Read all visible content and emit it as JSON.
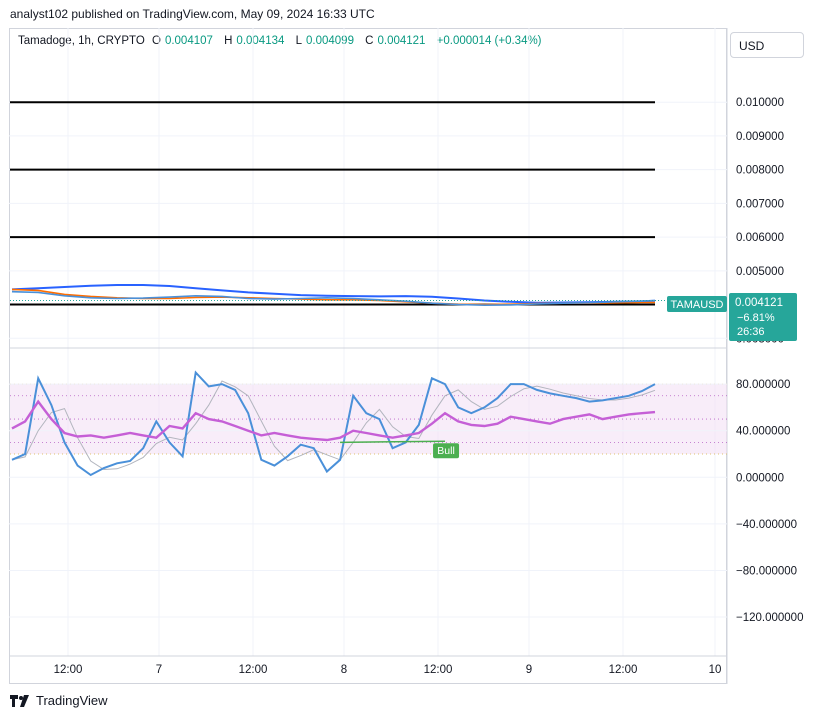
{
  "header": {
    "published": "analyst102 published on TradingView.com, May 09, 2024 16:33 UTC"
  },
  "legend": {
    "symbol": "Tamadoge, 1h, CRYPTO",
    "o_key": "O",
    "o": "0.004107",
    "h_key": "H",
    "h": "0.004134",
    "l_key": "L",
    "l": "0.004099",
    "c_key": "C",
    "c": "0.004121",
    "change": "+0.000014 (+0.34%)"
  },
  "currency_button": "USD",
  "price_tag": {
    "symbol": "TAMAUSD",
    "price": "0.004121",
    "change": "−6.81%",
    "countdown": "26:36"
  },
  "footer": {
    "brand": "TradingView"
  },
  "colors": {
    "up": "#089981",
    "price_tag_bg": "#26a69a",
    "stoch_k": "#4a90d9",
    "stoch_d_ma": "#b2b5be",
    "rsi_like": "#c55fd6",
    "band_fill": "#f3e1f5",
    "bull_tag": "#4caf50",
    "level_line": "#000000"
  },
  "chart_data": [
    {
      "type": "line",
      "title": "Tamadoge, 1h, CRYPTO",
      "panel": "price",
      "yticks": [
        "0.010000",
        "0.009000",
        "0.008000",
        "0.007000",
        "0.006000",
        "0.005000",
        "0.003000"
      ],
      "ylim": [
        0.0028,
        0.0114
      ],
      "xticks": [
        "12:00",
        "7",
        "12:00",
        "8",
        "12:00",
        "9",
        "12:00",
        "10"
      ],
      "horizontal_levels": [
        0.01,
        0.008,
        0.006,
        0.004
      ],
      "x_hours": [
        0,
        4,
        8,
        12,
        16,
        20,
        24,
        28,
        32,
        36,
        40,
        44,
        48,
        52,
        56,
        60,
        64,
        68,
        72,
        76,
        80,
        84,
        88,
        92,
        96,
        98
      ],
      "series": [
        {
          "color": "#2962ff",
          "values": [
            0.00445,
            0.00448,
            0.00452,
            0.00456,
            0.00458,
            0.00458,
            0.00455,
            0.00448,
            0.00442,
            0.00436,
            0.00432,
            0.00428,
            0.00426,
            0.00425,
            0.00424,
            0.00425,
            0.00423,
            0.00418,
            0.00412,
            0.00408,
            0.00405,
            0.00406,
            0.00407,
            0.00408,
            0.0041,
            0.00411
          ]
        },
        {
          "color": "#ff6d00",
          "values": [
            0.00445,
            0.00442,
            0.0043,
            0.00424,
            0.0042,
            0.00418,
            0.00418,
            0.00421,
            0.00422,
            0.0042,
            0.00418,
            0.00416,
            0.00414,
            0.00414,
            0.00412,
            0.00408,
            0.00404,
            0.00401,
            0.004,
            0.00401,
            0.00403,
            0.00404,
            0.00404,
            0.00405,
            0.00406,
            0.00406
          ]
        },
        {
          "color": "#4a90d9",
          "values": [
            0.00438,
            0.00436,
            0.00426,
            0.0042,
            0.00418,
            0.00419,
            0.00422,
            0.00426,
            0.00424,
            0.00418,
            0.00416,
            0.00418,
            0.0042,
            0.00418,
            0.00414,
            0.0041,
            0.00404,
            0.004,
            0.00398,
            0.00399,
            0.00402,
            0.00404,
            0.00405,
            0.00408,
            0.0041,
            0.00412
          ]
        }
      ],
      "last_price": 0.004121
    },
    {
      "type": "line",
      "panel": "oscillator",
      "yticks": [
        "80.000000",
        "40.000000",
        "0.000000",
        "−40.000000",
        "−80.000000",
        "−120.000000"
      ],
      "ylim": [
        -150,
        105
      ],
      "band": [
        20,
        80
      ],
      "mid_level": 50,
      "inner_levels": [
        30,
        70
      ],
      "x_hours": [
        0,
        2,
        4,
        6,
        8,
        10,
        12,
        14,
        16,
        18,
        20,
        22,
        24,
        26,
        28,
        30,
        32,
        34,
        36,
        38,
        40,
        42,
        44,
        46,
        48,
        50,
        52,
        54,
        56,
        58,
        60,
        62,
        64,
        66,
        68,
        70,
        72,
        74,
        76,
        78,
        80,
        82,
        84,
        86,
        88,
        90,
        92,
        94,
        96,
        98
      ],
      "series": [
        {
          "name": "",
          "color": "#4a90d9",
          "values": [
            15,
            20,
            85,
            62,
            30,
            10,
            2,
            8,
            12,
            14,
            25,
            48,
            30,
            18,
            90,
            78,
            80,
            75,
            55,
            15,
            10,
            18,
            28,
            25,
            5,
            15,
            70,
            55,
            50,
            25,
            30,
            45,
            85,
            80,
            60,
            55,
            60,
            68,
            80,
            80,
            75,
            72,
            70,
            68,
            65,
            66,
            68,
            70,
            74,
            80
          ]
        },
        {
          "name": "",
          "color": "#c55fd6",
          "values": [
            42,
            48,
            65,
            50,
            38,
            35,
            36,
            34,
            36,
            38,
            36,
            34,
            44,
            42,
            55,
            50,
            48,
            44,
            40,
            36,
            38,
            36,
            34,
            33,
            32,
            34,
            40,
            38,
            36,
            34,
            36,
            38,
            46,
            55,
            48,
            45,
            44,
            46,
            52,
            50,
            48,
            46,
            50,
            52,
            54,
            50,
            52,
            54,
            55,
            56
          ]
        }
      ],
      "annotations": [
        {
          "text": "Bull",
          "x_hour": 66,
          "y": 31
        }
      ]
    }
  ]
}
